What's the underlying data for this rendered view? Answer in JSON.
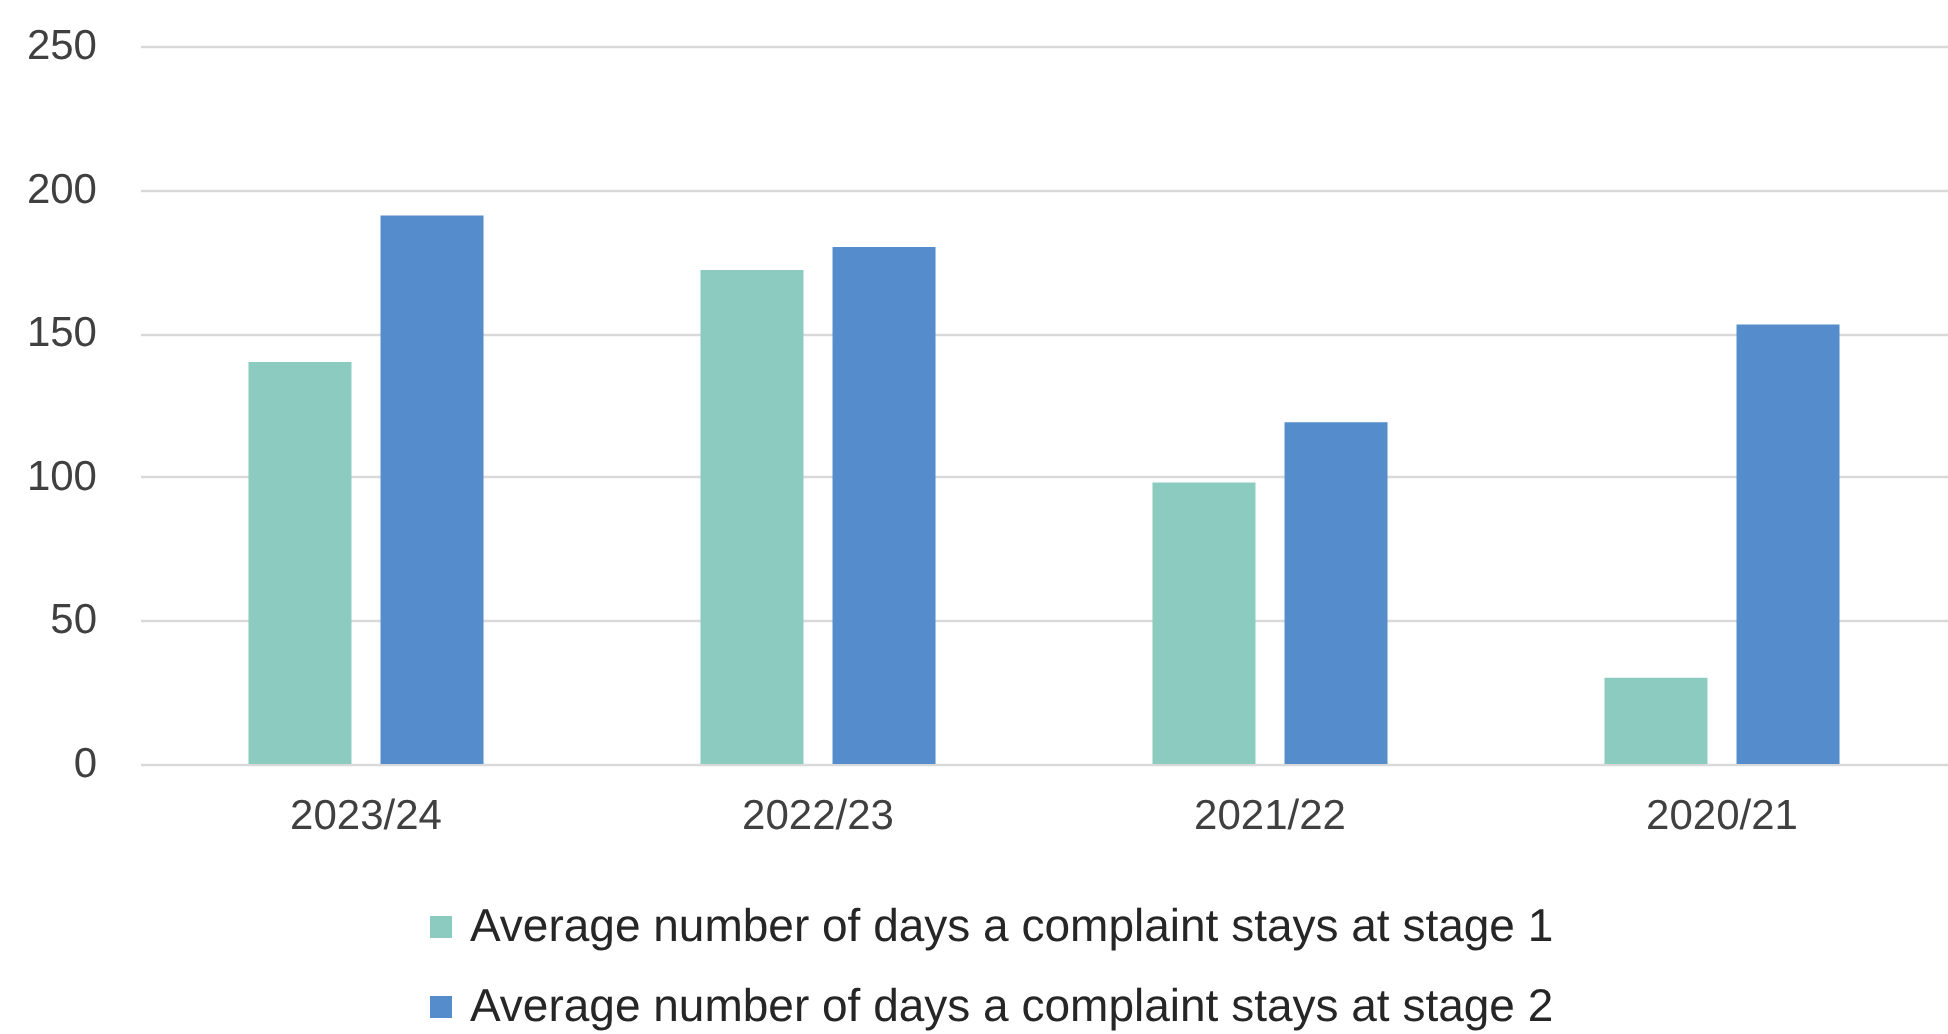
{
  "chart_data": {
    "type": "bar",
    "categories": [
      "2023/24",
      "2022/23",
      "2021/22",
      "2020/21"
    ],
    "series": [
      {
        "name": "Average number of days a complaint stays at stage 1",
        "color": "#8ccbbf",
        "values": [
          140,
          172,
          98,
          30
        ]
      },
      {
        "name": "Average number of days a complaint stays at stage 2",
        "color": "#558ccb",
        "values": [
          191,
          180,
          119,
          153
        ]
      }
    ],
    "ylim": [
      0,
      250
    ],
    "yticks": [
      0,
      50,
      100,
      150,
      200,
      250
    ],
    "grid": "y",
    "legend": "bottom"
  }
}
